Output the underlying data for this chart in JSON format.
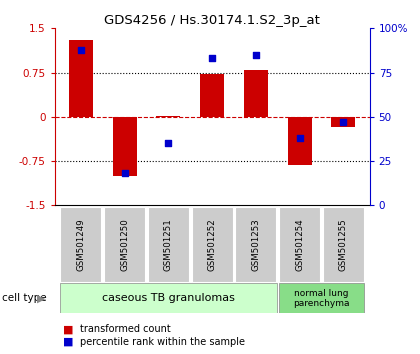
{
  "title": "GDS4256 / Hs.30174.1.S2_3p_at",
  "samples": [
    "GSM501249",
    "GSM501250",
    "GSM501251",
    "GSM501252",
    "GSM501253",
    "GSM501254",
    "GSM501255"
  ],
  "red_values": [
    1.3,
    -1.0,
    0.02,
    0.72,
    0.8,
    -0.82,
    -0.18
  ],
  "blue_percentiles": [
    88,
    18,
    35,
    83,
    85,
    38,
    47
  ],
  "ylim_left": [
    -1.5,
    1.5
  ],
  "ylim_right": [
    0,
    100
  ],
  "yticks_left": [
    -1.5,
    -0.75,
    0,
    0.75,
    1.5
  ],
  "yticks_right": [
    0,
    25,
    50,
    75,
    100
  ],
  "ytick_labels_right": [
    "0",
    "25",
    "50",
    "75",
    "100%"
  ],
  "cell_type_label": "cell type",
  "group1_label": "caseous TB granulomas",
  "group2_label": "normal lung\nparenchyma",
  "legend_red": "transformed count",
  "legend_blue": "percentile rank within the sample",
  "bar_color": "#cc0000",
  "dot_color": "#0000cc",
  "group1_bg": "#ccffcc",
  "group2_bg": "#88dd88",
  "sample_box_bg": "#cccccc",
  "bar_width": 0.55
}
